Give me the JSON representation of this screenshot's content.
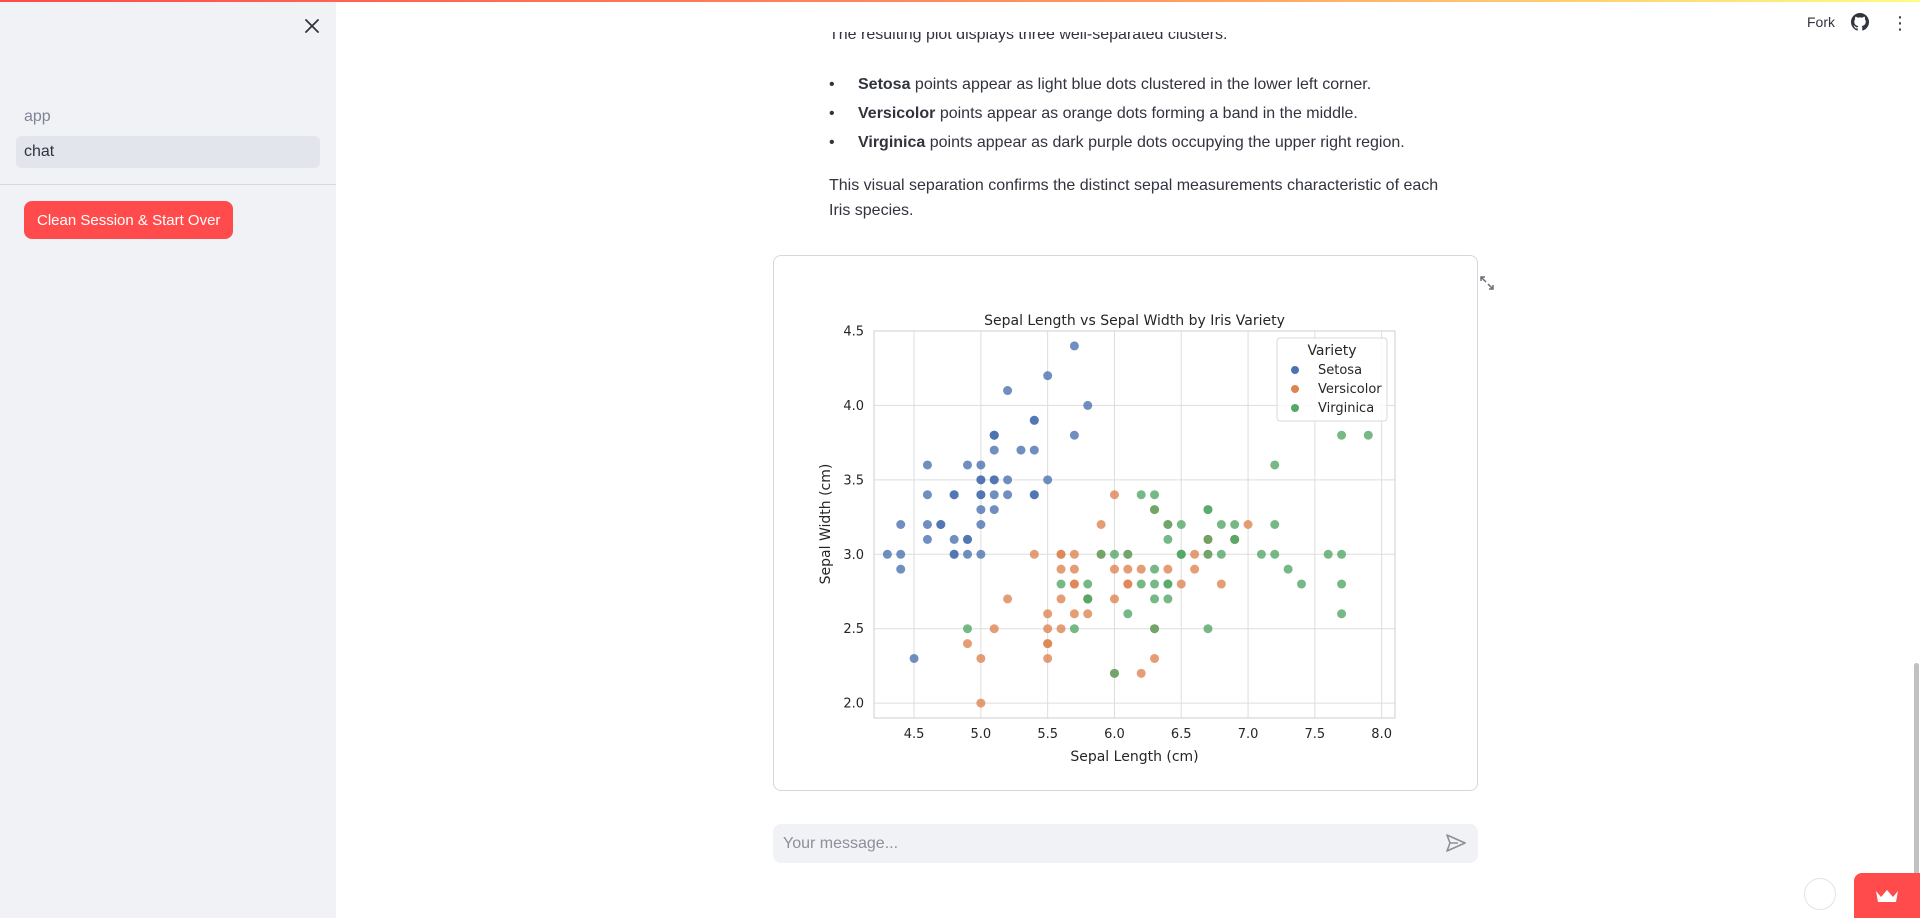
{
  "sidebar": {
    "nav_items": [
      {
        "label": "app",
        "active": false
      },
      {
        "label": "chat",
        "active": true
      }
    ],
    "clean_button": "Clean Session & Start Over"
  },
  "header": {
    "fork_label": "Fork"
  },
  "main": {
    "cut_line": "The resulting plot displays three well-separated clusters:",
    "bullets": [
      {
        "bold": "Setosa",
        "text": " points appear as light blue dots clustered in the lower left corner."
      },
      {
        "bold": "Versicolor",
        "text": " points appear as orange dots forming a band in the middle."
      },
      {
        "bold": "Virginica",
        "text": " points appear as dark purple dots occupying the upper right region."
      }
    ],
    "paragraph": "This visual separation confirms the distinct sepal measurements characteristic of each Iris species."
  },
  "chat": {
    "placeholder": "Your message..."
  },
  "colors": {
    "accent": "#ff4b4b",
    "setosa": "#4c72b0",
    "versicolor": "#dd8452",
    "virginica": "#55a868"
  },
  "icons": {
    "close": "close-icon",
    "github": "github-icon",
    "menu": "menu-icon",
    "expand": "expand-icon",
    "send": "send-icon",
    "crown": "crown-icon"
  },
  "chart_data": {
    "type": "scatter",
    "title": "Sepal Length vs Sepal Width by Iris Variety",
    "xlabel": "Sepal Length (cm)",
    "ylabel": "Sepal Width (cm)",
    "xlim": [
      4.2,
      8.1
    ],
    "ylim": [
      1.9,
      4.5
    ],
    "xticks": [
      "4.5",
      "5.0",
      "5.5",
      "6.0",
      "6.5",
      "7.0",
      "7.5",
      "8.0"
    ],
    "yticks": [
      "2.0",
      "2.5",
      "3.0",
      "3.5",
      "4.0",
      "4.5"
    ],
    "grid": true,
    "legend": {
      "title": "Variety",
      "placement": "top-right"
    },
    "series": [
      {
        "name": "Setosa",
        "color": "#4c72b0",
        "points": [
          [
            5.1,
            3.5
          ],
          [
            4.9,
            3.0
          ],
          [
            4.7,
            3.2
          ],
          [
            4.6,
            3.1
          ],
          [
            5.0,
            3.6
          ],
          [
            5.4,
            3.9
          ],
          [
            4.6,
            3.4
          ],
          [
            5.0,
            3.4
          ],
          [
            4.4,
            2.9
          ],
          [
            4.9,
            3.1
          ],
          [
            5.4,
            3.7
          ],
          [
            4.8,
            3.4
          ],
          [
            4.8,
            3.0
          ],
          [
            4.3,
            3.0
          ],
          [
            5.8,
            4.0
          ],
          [
            5.7,
            4.4
          ],
          [
            5.4,
            3.9
          ],
          [
            5.1,
            3.5
          ],
          [
            5.7,
            3.8
          ],
          [
            5.1,
            3.8
          ],
          [
            5.4,
            3.4
          ],
          [
            5.1,
            3.7
          ],
          [
            4.6,
            3.6
          ],
          [
            5.1,
            3.3
          ],
          [
            4.8,
            3.4
          ],
          [
            5.0,
            3.0
          ],
          [
            5.0,
            3.4
          ],
          [
            5.2,
            3.5
          ],
          [
            5.2,
            3.4
          ],
          [
            4.7,
            3.2
          ],
          [
            4.8,
            3.1
          ],
          [
            5.4,
            3.4
          ],
          [
            5.2,
            4.1
          ],
          [
            5.5,
            4.2
          ],
          [
            4.9,
            3.1
          ],
          [
            5.0,
            3.2
          ],
          [
            5.5,
            3.5
          ],
          [
            4.9,
            3.6
          ],
          [
            4.4,
            3.0
          ],
          [
            5.1,
            3.4
          ],
          [
            5.0,
            3.5
          ],
          [
            4.5,
            2.3
          ],
          [
            4.4,
            3.2
          ],
          [
            5.0,
            3.5
          ],
          [
            5.1,
            3.8
          ],
          [
            4.8,
            3.0
          ],
          [
            5.1,
            3.8
          ],
          [
            4.6,
            3.2
          ],
          [
            5.3,
            3.7
          ],
          [
            5.0,
            3.3
          ]
        ]
      },
      {
        "name": "Versicolor",
        "color": "#dd8452",
        "points": [
          [
            7.0,
            3.2
          ],
          [
            6.4,
            3.2
          ],
          [
            6.9,
            3.1
          ],
          [
            5.5,
            2.3
          ],
          [
            6.5,
            2.8
          ],
          [
            5.7,
            2.8
          ],
          [
            6.3,
            3.3
          ],
          [
            4.9,
            2.4
          ],
          [
            6.6,
            2.9
          ],
          [
            5.2,
            2.7
          ],
          [
            5.0,
            2.0
          ],
          [
            5.9,
            3.0
          ],
          [
            6.0,
            2.2
          ],
          [
            6.1,
            2.9
          ],
          [
            5.6,
            2.9
          ],
          [
            6.7,
            3.1
          ],
          [
            5.6,
            3.0
          ],
          [
            5.8,
            2.7
          ],
          [
            6.2,
            2.2
          ],
          [
            5.6,
            2.5
          ],
          [
            5.9,
            3.2
          ],
          [
            6.1,
            2.8
          ],
          [
            6.3,
            2.5
          ],
          [
            6.1,
            2.8
          ],
          [
            6.4,
            2.9
          ],
          [
            6.6,
            3.0
          ],
          [
            6.8,
            2.8
          ],
          [
            6.7,
            3.0
          ],
          [
            6.0,
            2.9
          ],
          [
            5.7,
            2.6
          ],
          [
            5.5,
            2.4
          ],
          [
            5.5,
            2.4
          ],
          [
            5.8,
            2.7
          ],
          [
            6.0,
            2.7
          ],
          [
            5.4,
            3.0
          ],
          [
            6.0,
            3.4
          ],
          [
            6.7,
            3.1
          ],
          [
            6.3,
            2.3
          ],
          [
            5.6,
            3.0
          ],
          [
            5.5,
            2.5
          ],
          [
            5.5,
            2.6
          ],
          [
            6.1,
            3.0
          ],
          [
            5.8,
            2.6
          ],
          [
            5.0,
            2.3
          ],
          [
            5.6,
            2.7
          ],
          [
            5.7,
            3.0
          ],
          [
            5.7,
            2.9
          ],
          [
            6.2,
            2.9
          ],
          [
            5.1,
            2.5
          ],
          [
            5.7,
            2.8
          ]
        ]
      },
      {
        "name": "Virginica",
        "color": "#55a868",
        "points": [
          [
            6.3,
            3.3
          ],
          [
            5.8,
            2.7
          ],
          [
            7.1,
            3.0
          ],
          [
            6.3,
            2.9
          ],
          [
            6.5,
            3.0
          ],
          [
            7.6,
            3.0
          ],
          [
            4.9,
            2.5
          ],
          [
            7.3,
            2.9
          ],
          [
            6.7,
            2.5
          ],
          [
            7.2,
            3.6
          ],
          [
            6.5,
            3.2
          ],
          [
            6.4,
            2.7
          ],
          [
            6.8,
            3.0
          ],
          [
            5.7,
            2.5
          ],
          [
            5.8,
            2.8
          ],
          [
            6.4,
            3.2
          ],
          [
            6.5,
            3.0
          ],
          [
            7.7,
            3.8
          ],
          [
            7.7,
            2.6
          ],
          [
            6.0,
            2.2
          ],
          [
            6.9,
            3.2
          ],
          [
            5.6,
            2.8
          ],
          [
            7.7,
            2.8
          ],
          [
            6.3,
            2.7
          ],
          [
            6.7,
            3.3
          ],
          [
            7.2,
            3.2
          ],
          [
            6.2,
            2.8
          ],
          [
            6.1,
            3.0
          ],
          [
            6.4,
            2.8
          ],
          [
            7.2,
            3.0
          ],
          [
            7.4,
            2.8
          ],
          [
            7.9,
            3.8
          ],
          [
            6.4,
            2.8
          ],
          [
            6.3,
            2.8
          ],
          [
            6.1,
            2.6
          ],
          [
            7.7,
            3.0
          ],
          [
            6.3,
            3.4
          ],
          [
            6.4,
            3.1
          ],
          [
            6.0,
            3.0
          ],
          [
            6.9,
            3.1
          ],
          [
            6.7,
            3.1
          ],
          [
            6.9,
            3.1
          ],
          [
            5.8,
            2.7
          ],
          [
            6.8,
            3.2
          ],
          [
            6.7,
            3.3
          ],
          [
            6.7,
            3.0
          ],
          [
            6.3,
            2.5
          ],
          [
            6.5,
            3.0
          ],
          [
            6.2,
            3.4
          ],
          [
            5.9,
            3.0
          ]
        ]
      }
    ]
  }
}
